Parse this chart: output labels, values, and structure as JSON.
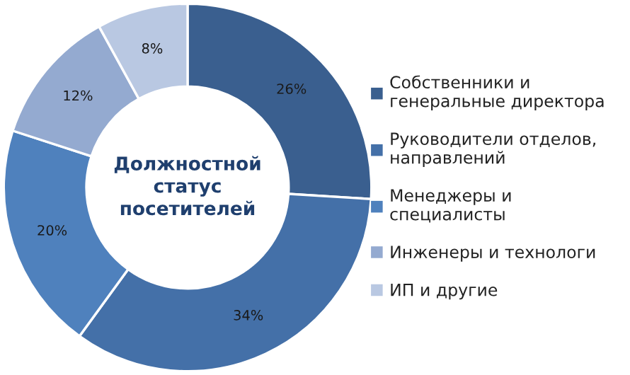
{
  "chart_data": {
    "type": "donut",
    "title": "Должностной\nстатус\nпосетителей",
    "categories": [
      "Собственники и\nгенеральные директора",
      "Руководители отделов,\nнаправлений",
      "Менеджеры и\nспециалисты",
      "Инженеры и технологи",
      "ИП и другие"
    ],
    "values": [
      26,
      34,
      20,
      12,
      8
    ],
    "value_labels": [
      "26%",
      "34%",
      "20%",
      "12%",
      "8%"
    ],
    "colors": [
      "#3a5f8f",
      "#4470a8",
      "#4f81bd",
      "#94aad0",
      "#b9c8e2"
    ],
    "legend": "right"
  }
}
